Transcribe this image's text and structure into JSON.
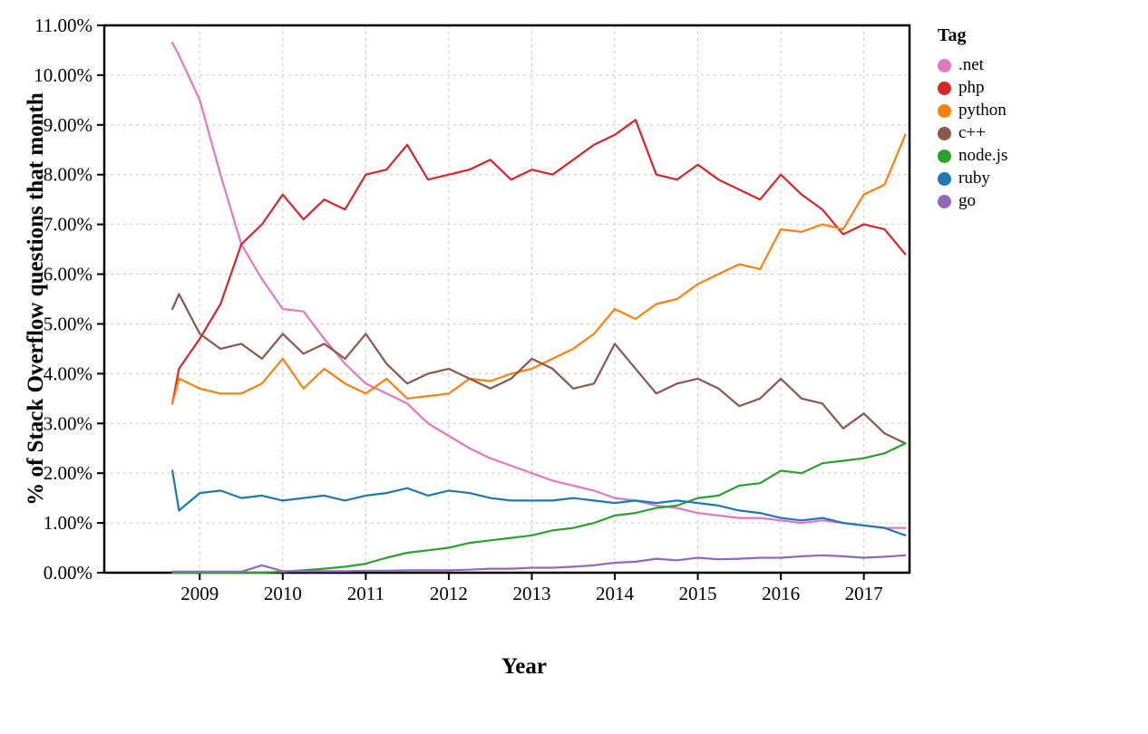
{
  "chart_data": {
    "type": "line",
    "title": "",
    "xlabel": "Year",
    "ylabel": "% of Stack Overflow questions that month",
    "legend_title": "Tag",
    "legend_position": "right",
    "grid": true,
    "grid_style": "dashed",
    "xlim": [
      2007.85,
      2017.55
    ],
    "ylim": [
      0,
      11
    ],
    "yticks": {
      "values": [
        0,
        1,
        2,
        3,
        4,
        5,
        6,
        7,
        8,
        9,
        10,
        11
      ],
      "labels": [
        "0.00%",
        "1.00%",
        "2.00%",
        "3.00%",
        "4.00%",
        "5.00%",
        "6.00%",
        "7.00%",
        "8.00%",
        "9.00%",
        "10.00%",
        "11.00%"
      ]
    },
    "xticks": {
      "values": [
        2009,
        2010,
        2011,
        2012,
        2013,
        2014,
        2015,
        2016,
        2017
      ],
      "labels": [
        "2009",
        "2010",
        "2011",
        "2012",
        "2013",
        "2014",
        "2015",
        "2016",
        "2017"
      ]
    },
    "x": [
      2008.67,
      2008.75,
      2009.0,
      2009.25,
      2009.5,
      2009.75,
      2010.0,
      2010.25,
      2010.5,
      2010.75,
      2011.0,
      2011.25,
      2011.5,
      2011.75,
      2012.0,
      2012.25,
      2012.5,
      2012.75,
      2013.0,
      2013.25,
      2013.5,
      2013.75,
      2014.0,
      2014.25,
      2014.5,
      2014.75,
      2015.0,
      2015.25,
      2015.5,
      2015.75,
      2016.0,
      2016.25,
      2016.5,
      2016.75,
      2017.0,
      2017.25,
      2017.5
    ],
    "series": [
      {
        "name": ".net",
        "color": "#e377c2",
        "values": [
          10.65,
          10.4,
          9.5,
          8.0,
          6.6,
          5.9,
          5.3,
          5.25,
          4.7,
          4.2,
          3.8,
          3.6,
          3.4,
          3.0,
          2.75,
          2.5,
          2.3,
          2.15,
          2.0,
          1.85,
          1.75,
          1.65,
          1.5,
          1.45,
          1.35,
          1.3,
          1.2,
          1.15,
          1.1,
          1.1,
          1.05,
          1.0,
          1.05,
          1.0,
          0.95,
          0.9,
          0.9
        ]
      },
      {
        "name": "php",
        "color": "#d62728",
        "values": [
          3.4,
          4.1,
          4.7,
          5.4,
          6.6,
          7.0,
          7.6,
          7.1,
          7.5,
          7.3,
          8.0,
          8.1,
          8.6,
          7.9,
          8.0,
          8.1,
          8.3,
          7.9,
          8.1,
          8.0,
          8.3,
          8.6,
          8.8,
          9.1,
          8.0,
          7.9,
          8.2,
          7.9,
          7.7,
          7.5,
          8.0,
          7.6,
          7.3,
          6.8,
          7.0,
          6.9,
          6.4
        ]
      },
      {
        "name": "python",
        "color": "#ff7f0e",
        "values": [
          3.4,
          3.9,
          3.7,
          3.6,
          3.6,
          3.8,
          4.3,
          3.7,
          4.1,
          3.8,
          3.6,
          3.9,
          3.5,
          3.55,
          3.6,
          3.9,
          3.85,
          4.0,
          4.1,
          4.3,
          4.5,
          4.8,
          5.3,
          5.1,
          5.4,
          5.5,
          5.8,
          6.0,
          6.2,
          6.1,
          6.9,
          6.85,
          7.0,
          6.9,
          7.6,
          7.8,
          8.8
        ]
      },
      {
        "name": "c++",
        "color": "#8c564b",
        "values": [
          5.3,
          5.6,
          4.8,
          4.5,
          4.6,
          4.3,
          4.8,
          4.4,
          4.6,
          4.3,
          4.8,
          4.2,
          3.8,
          4.0,
          4.1,
          3.9,
          3.7,
          3.9,
          4.3,
          4.1,
          3.7,
          3.8,
          4.6,
          4.1,
          3.6,
          3.8,
          3.9,
          3.7,
          3.35,
          3.5,
          3.9,
          3.5,
          3.4,
          2.9,
          3.2,
          2.8,
          2.6
        ]
      },
      {
        "name": "node.js",
        "color": "#2ca02c",
        "values": [
          0.0,
          0.0,
          0.0,
          0.0,
          0.0,
          0.0,
          0.02,
          0.05,
          0.08,
          0.12,
          0.18,
          0.3,
          0.4,
          0.45,
          0.5,
          0.6,
          0.65,
          0.7,
          0.75,
          0.85,
          0.9,
          1.0,
          1.15,
          1.2,
          1.3,
          1.35,
          1.5,
          1.55,
          1.75,
          1.8,
          2.05,
          2.0,
          2.2,
          2.25,
          2.3,
          2.4,
          2.6
        ]
      },
      {
        "name": "ruby",
        "color": "#1f77b4",
        "values": [
          2.05,
          1.25,
          1.6,
          1.65,
          1.5,
          1.55,
          1.45,
          1.5,
          1.55,
          1.45,
          1.55,
          1.6,
          1.7,
          1.55,
          1.65,
          1.6,
          1.5,
          1.45,
          1.45,
          1.45,
          1.5,
          1.45,
          1.4,
          1.45,
          1.4,
          1.45,
          1.4,
          1.35,
          1.25,
          1.2,
          1.1,
          1.05,
          1.1,
          1.0,
          0.95,
          0.9,
          0.75
        ]
      },
      {
        "name": "go",
        "color": "#9467bd",
        "values": [
          0.02,
          0.02,
          0.02,
          0.02,
          0.02,
          0.15,
          0.03,
          0.03,
          0.03,
          0.03,
          0.04,
          0.04,
          0.05,
          0.05,
          0.05,
          0.06,
          0.08,
          0.08,
          0.1,
          0.1,
          0.12,
          0.15,
          0.2,
          0.22,
          0.28,
          0.25,
          0.3,
          0.27,
          0.28,
          0.3,
          0.3,
          0.33,
          0.35,
          0.33,
          0.3,
          0.32,
          0.35
        ]
      }
    ],
    "style": {
      "grid_color": "#c9c9c9",
      "axis_color": "#000000",
      "background": "#ffffff"
    }
  }
}
